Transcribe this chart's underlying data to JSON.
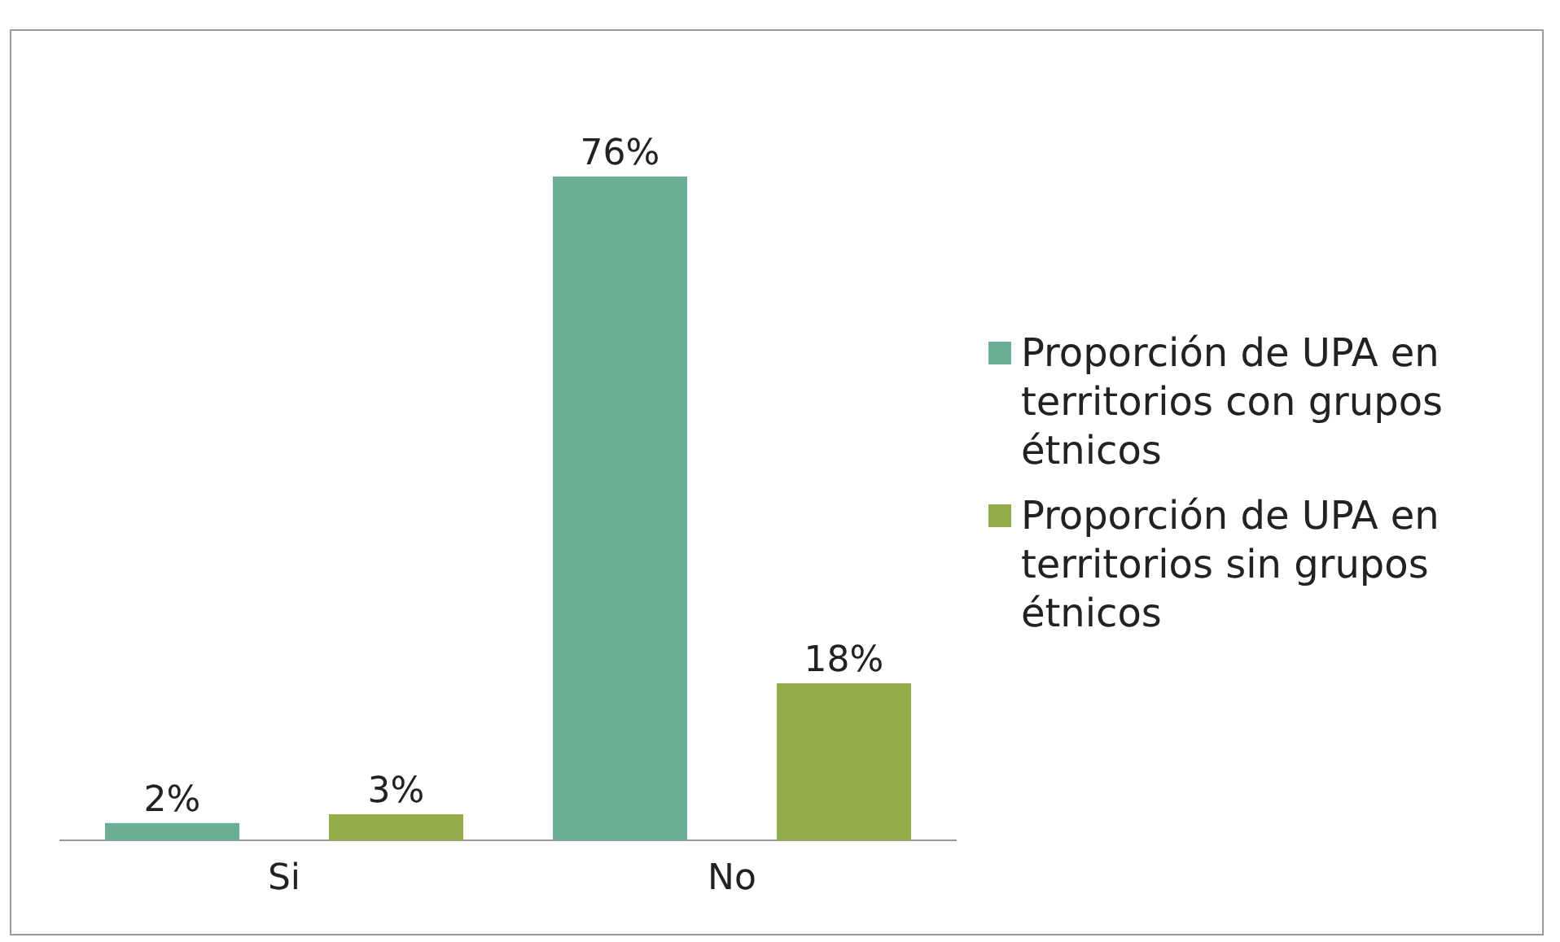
{
  "chart_data": {
    "type": "bar",
    "categories": [
      "Si",
      "No"
    ],
    "series": [
      {
        "name": "Proporción de UPA en territorios con grupos étnicos",
        "color": "#6aae94",
        "values": [
          2,
          76
        ],
        "value_labels": [
          "2%",
          "76%"
        ]
      },
      {
        "name": "Proporción de UPA en territorios sin grupos étnicos",
        "color": "#93ad4a",
        "values": [
          3,
          18
        ],
        "value_labels": [
          "3%",
          "18%"
        ]
      }
    ],
    "legend": "right"
  }
}
